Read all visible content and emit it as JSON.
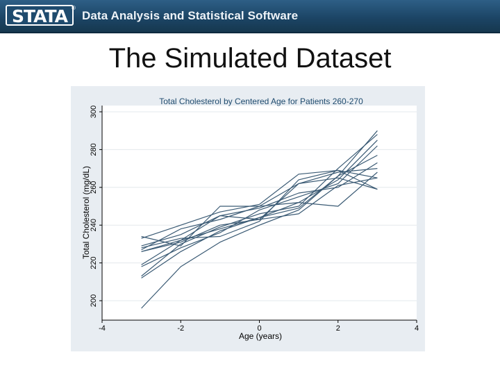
{
  "header": {
    "logo_text": "STATA",
    "registered_mark": "®",
    "tagline": "Data Analysis and Statistical Software"
  },
  "slide": {
    "title": "The Simulated Dataset"
  },
  "colors": {
    "banner": "#1c4566",
    "chart_background": "#e8edf2",
    "line": "#3a5a74",
    "title_text": "#1f4b6e"
  },
  "chart_data": {
    "type": "line",
    "title": "Total Cholesterol by Centered Age for Patients 260-270",
    "xlabel": "Age (years)",
    "ylabel": "Total Cholesterol (mg/dL)",
    "xlim": [
      -4,
      4
    ],
    "ylim": [
      200,
      300
    ],
    "xticks": [
      -4,
      -2,
      0,
      2,
      4
    ],
    "yticks": [
      200,
      220,
      240,
      260,
      280,
      300
    ],
    "grid": true,
    "x": [
      -3,
      -2,
      -1,
      0,
      1,
      2,
      3
    ],
    "series": [
      {
        "values": [
          196,
          218,
          231,
          240,
          248,
          266,
          290
        ]
      },
      {
        "values": [
          212,
          226,
          237,
          244,
          252,
          264,
          285
        ]
      },
      {
        "values": [
          213,
          230,
          239,
          246,
          250,
          270,
          288
        ]
      },
      {
        "values": [
          218,
          228,
          236,
          248,
          255,
          262,
          282
        ]
      },
      {
        "values": [
          219,
          232,
          238,
          244,
          249,
          266,
          277
        ]
      },
      {
        "values": [
          226,
          232,
          245,
          249,
          257,
          260,
          273
        ]
      },
      {
        "values": [
          227,
          238,
          243,
          250,
          262,
          268,
          270
        ]
      },
      {
        "values": [
          228,
          233,
          234,
          242,
          264,
          269,
          265
        ]
      },
      {
        "values": [
          234,
          229,
          250,
          250,
          252,
          250,
          268
        ]
      },
      {
        "values": [
          226,
          231,
          240,
          243,
          246,
          261,
          265
        ]
      },
      {
        "values": [
          233,
          240,
          247,
          251,
          267,
          269,
          259
        ]
      },
      {
        "values": [
          229,
          235,
          245,
          243,
          262,
          265,
          259
        ]
      }
    ]
  }
}
